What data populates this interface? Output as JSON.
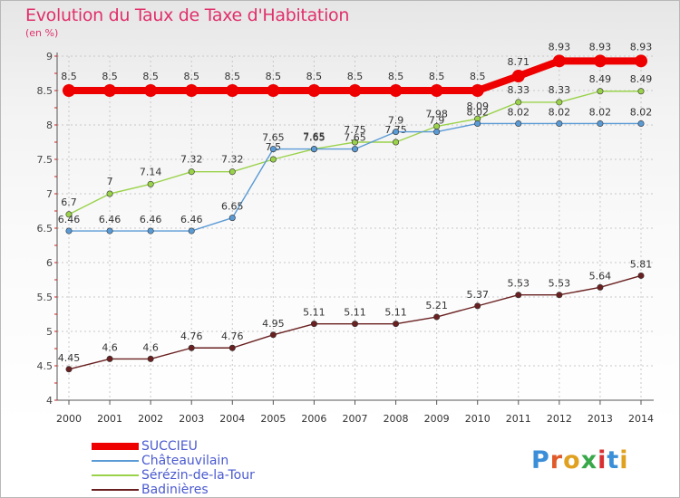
{
  "title": "Evolution du Taux de Taxe d'Habitation",
  "subtitle": "(en %)",
  "logo": {
    "text": "Proxiti",
    "letter_colors": [
      "#3a8fd8",
      "#e05a2a",
      "#e0a020",
      "#3aa84a",
      "#d83030",
      "#3a8fd8",
      "#e0a020"
    ]
  },
  "chart_data": {
    "type": "line",
    "title": "Evolution du Taux de Taxe d'Habitation",
    "ylabel": "(en %)",
    "xlabel": "",
    "ylim": [
      4,
      9
    ],
    "yticks": [
      4,
      4.5,
      5,
      5.5,
      6,
      6.5,
      7,
      7.5,
      8,
      8.5,
      9
    ],
    "ytick_labels": [
      "4",
      "4.5",
      "5",
      "5.5",
      "6",
      "6.5",
      "7",
      "7.5",
      "8",
      "8.5",
      "9"
    ],
    "x": [
      "2000",
      "2001",
      "2002",
      "2003",
      "2004",
      "2005",
      "2006",
      "2007",
      "2008",
      "2009",
      "2010",
      "2011",
      "2012",
      "2013",
      "2014"
    ],
    "grid": true,
    "legend_position": "bottom-left",
    "series": [
      {
        "name": "SUCCIEU",
        "color": "#ee0000",
        "values": [
          8.5,
          8.5,
          8.5,
          8.5,
          8.5,
          8.5,
          8.5,
          8.5,
          8.5,
          8.5,
          8.5,
          8.71,
          8.93,
          8.93,
          8.93
        ],
        "labels": [
          "8.5",
          "8.5",
          "8.5",
          "8.5",
          "8.5",
          "8.5",
          "8.5",
          "8.5",
          "8.5",
          "8.5",
          "8.5",
          "8.71",
          "8.93",
          "8.93",
          "8.93"
        ]
      },
      {
        "name": "Châteauvilain",
        "color": "#5a9ad5",
        "values": [
          6.46,
          6.46,
          6.46,
          6.46,
          6.65,
          7.65,
          7.65,
          7.65,
          7.9,
          7.9,
          8.02,
          8.02,
          8.02,
          8.02,
          8.02
        ],
        "labels": [
          "6.46",
          "6.46",
          "6.46",
          "6.46",
          "6.65",
          "7.65",
          "7.65",
          "7.65",
          "7.9",
          "7.9",
          "8.02",
          "8.02",
          "8.02",
          "8.02",
          "8.02"
        ]
      },
      {
        "name": "Sérézin-de-la-Tour",
        "color": "#9ad24a",
        "values": [
          6.7,
          7,
          7.14,
          7.32,
          7.32,
          7.5,
          7.65,
          7.75,
          7.75,
          7.98,
          8.09,
          8.33,
          8.33,
          8.49,
          8.49
        ],
        "labels": [
          "6.7",
          "7",
          "7.14",
          "7.32",
          "7.32",
          "7.5",
          "7.65",
          "7.75",
          "7.75",
          "7.98",
          "8.09",
          "8.33",
          "8.33",
          "8.49",
          "8.49"
        ]
      },
      {
        "name": "Badinières",
        "color": "#6a2020",
        "values": [
          4.45,
          4.6,
          4.6,
          4.76,
          4.76,
          4.95,
          5.11,
          5.11,
          5.11,
          5.21,
          5.37,
          5.53,
          5.53,
          5.64,
          5.81
        ],
        "labels": [
          "4.45",
          "4.6",
          "4.6",
          "4.76",
          "4.76",
          "4.95",
          "5.11",
          "5.11",
          "5.11",
          "5.21",
          "5.37",
          "5.53",
          "5.53",
          "5.64",
          "5.81"
        ]
      }
    ]
  }
}
